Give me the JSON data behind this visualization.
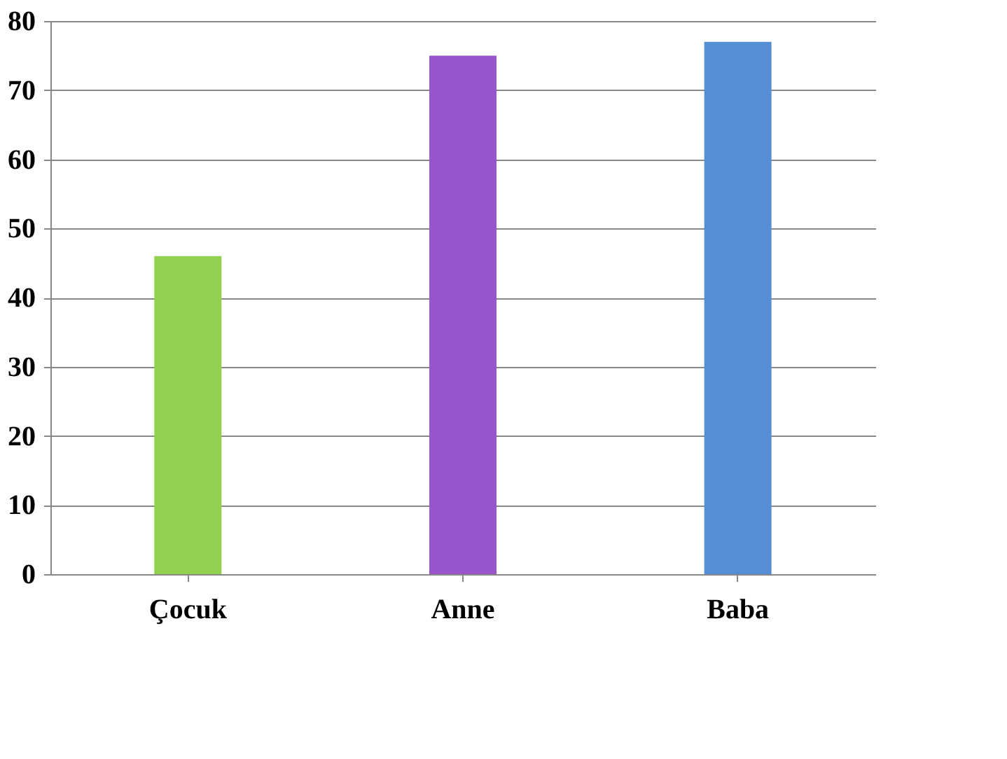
{
  "chart_data": {
    "type": "bar",
    "categories": [
      "Çocuk",
      "Anne",
      "Baba"
    ],
    "values": [
      46,
      75,
      77
    ],
    "colors": [
      "#92d050",
      "#9955cc",
      "#558ed5"
    ],
    "ylim": [
      0,
      80
    ],
    "yticks": [
      0,
      10,
      20,
      30,
      40,
      50,
      60,
      70,
      80
    ],
    "grid": "y"
  }
}
